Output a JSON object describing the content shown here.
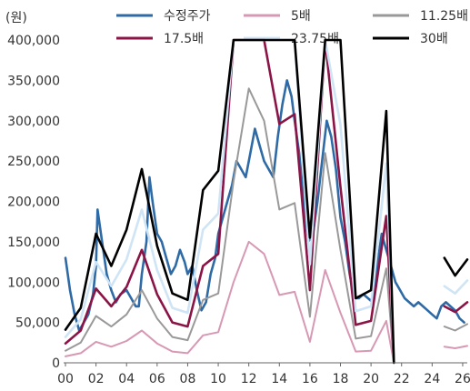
{
  "chart_data": {
    "type": "line",
    "unit_label": "(원)",
    "ylim": [
      0,
      400000
    ],
    "y_ticks": [
      "400,000",
      "350,000",
      "300,000",
      "250,000",
      "200,000",
      "150,000",
      "100,000",
      "50,000",
      "0"
    ],
    "y_tick_values": [
      400000,
      350000,
      300000,
      250000,
      200000,
      150000,
      100000,
      50000,
      0
    ],
    "x_ticks": [
      "00",
      "02",
      "04",
      "06",
      "08",
      "10",
      "12",
      "14",
      "16",
      "18",
      "20",
      "22",
      "24",
      "26"
    ],
    "x_tick_values": [
      2000,
      2002,
      2004,
      2006,
      2008,
      2010,
      2012,
      2014,
      2016,
      2018,
      2020,
      2022,
      2024,
      2026
    ],
    "xlim": [
      2000,
      2026.3
    ],
    "legend_position": "top",
    "series": [
      {
        "name": "수정주가",
        "color": "#2e6aa5",
        "width": 2.6,
        "points": [
          [
            2000.0,
            130000
          ],
          [
            2000.3,
            90000
          ],
          [
            2000.6,
            60000
          ],
          [
            2000.9,
            40000
          ],
          [
            2001.2,
            50000
          ],
          [
            2001.5,
            60000
          ],
          [
            2001.8,
            85000
          ],
          [
            2002.0,
            120000
          ],
          [
            2002.1,
            190000
          ],
          [
            2002.4,
            150000
          ],
          [
            2002.7,
            110000
          ],
          [
            2003.0,
            90000
          ],
          [
            2003.3,
            75000
          ],
          [
            2003.6,
            85000
          ],
          [
            2004.0,
            90000
          ],
          [
            2004.3,
            80000
          ],
          [
            2004.6,
            70000
          ],
          [
            2004.8,
            70000
          ],
          [
            2005.0,
            110000
          ],
          [
            2005.3,
            150000
          ],
          [
            2005.5,
            230000
          ],
          [
            2005.7,
            200000
          ],
          [
            2006.0,
            160000
          ],
          [
            2006.3,
            150000
          ],
          [
            2006.6,
            130000
          ],
          [
            2006.9,
            110000
          ],
          [
            2007.2,
            120000
          ],
          [
            2007.5,
            140000
          ],
          [
            2007.8,
            125000
          ],
          [
            2008.0,
            110000
          ],
          [
            2008.3,
            120000
          ],
          [
            2008.6,
            90000
          ],
          [
            2008.9,
            65000
          ],
          [
            2009.2,
            75000
          ],
          [
            2009.5,
            110000
          ],
          [
            2009.8,
            130000
          ],
          [
            2010.0,
            160000
          ],
          [
            2010.3,
            180000
          ],
          [
            2010.6,
            200000
          ],
          [
            2010.9,
            220000
          ],
          [
            2011.2,
            250000
          ],
          [
            2011.5,
            240000
          ],
          [
            2011.8,
            230000
          ],
          [
            2012.1,
            260000
          ],
          [
            2012.4,
            290000
          ],
          [
            2012.7,
            270000
          ],
          [
            2013.0,
            250000
          ],
          [
            2013.3,
            240000
          ],
          [
            2013.6,
            230000
          ],
          [
            2013.9,
            280000
          ],
          [
            2014.2,
            320000
          ],
          [
            2014.5,
            350000
          ],
          [
            2014.8,
            330000
          ],
          [
            2015.0,
            300000
          ],
          [
            2015.3,
            260000
          ],
          [
            2015.6,
            200000
          ],
          [
            2015.9,
            150000
          ],
          [
            2016.2,
            160000
          ],
          [
            2016.5,
            200000
          ],
          [
            2016.8,
            250000
          ],
          [
            2017.1,
            300000
          ],
          [
            2017.4,
            280000
          ],
          [
            2017.7,
            240000
          ],
          [
            2018.0,
            180000
          ],
          [
            2018.3,
            150000
          ],
          [
            2018.6,
            110000
          ],
          [
            2018.9,
            80000
          ],
          [
            2019.2,
            80000
          ],
          [
            2019.5,
            85000
          ],
          [
            2019.8,
            80000
          ],
          [
            2020.1,
            75000
          ],
          [
            2020.4,
            120000
          ],
          [
            2020.7,
            160000
          ],
          [
            2021.0,
            140000
          ],
          [
            2021.3,
            120000
          ],
          [
            2021.6,
            100000
          ],
          [
            2021.9,
            90000
          ],
          [
            2022.2,
            80000
          ],
          [
            2022.5,
            75000
          ],
          [
            2022.8,
            70000
          ],
          [
            2023.1,
            75000
          ],
          [
            2023.4,
            70000
          ],
          [
            2023.7,
            65000
          ],
          [
            2024.0,
            60000
          ],
          [
            2024.3,
            55000
          ],
          [
            2024.6,
            70000
          ],
          [
            2024.9,
            75000
          ],
          [
            2025.2,
            70000
          ],
          [
            2025.5,
            65000
          ],
          [
            2025.8,
            55000
          ],
          [
            2026.1,
            50000
          ]
        ]
      },
      {
        "name": "5배",
        "color": "#d798b4",
        "width": 2,
        "points": [
          [
            2000.0,
            8000
          ],
          [
            2001.0,
            12000
          ],
          [
            2002.0,
            26000
          ],
          [
            2003.0,
            20000
          ],
          [
            2004.0,
            27000
          ],
          [
            2005.0,
            40000
          ],
          [
            2006.0,
            24000
          ],
          [
            2007.0,
            14000
          ],
          [
            2008.0,
            12000
          ],
          [
            2009.0,
            34000
          ],
          [
            2010.0,
            38000
          ],
          [
            2011.0,
            100000
          ],
          [
            2012.0,
            150000
          ],
          [
            2013.0,
            135000
          ],
          [
            2014.0,
            84000
          ],
          [
            2015.0,
            88000
          ],
          [
            2016.0,
            26000
          ],
          [
            2017.0,
            115000
          ],
          [
            2018.0,
            62000
          ],
          [
            2019.0,
            14000
          ],
          [
            2020.0,
            15000
          ],
          [
            2021.0,
            52000
          ],
          [
            2021.5,
            0
          ],
          [
            null,
            null
          ],
          [
            2024.8,
            20000
          ],
          [
            2025.5,
            18000
          ],
          [
            2026.3,
            21000
          ]
        ]
      },
      {
        "name": "11.25배",
        "color": "#999999",
        "width": 2,
        "points": [
          [
            2000.0,
            15000
          ],
          [
            2001.0,
            25000
          ],
          [
            2002.0,
            58000
          ],
          [
            2003.0,
            45000
          ],
          [
            2004.0,
            60000
          ],
          [
            2005.0,
            90000
          ],
          [
            2006.0,
            55000
          ],
          [
            2007.0,
            32000
          ],
          [
            2008.0,
            28000
          ],
          [
            2009.0,
            78000
          ],
          [
            2010.0,
            86000
          ],
          [
            2011.0,
            225000
          ],
          [
            2012.0,
            340000
          ],
          [
            2013.0,
            300000
          ],
          [
            2014.0,
            190000
          ],
          [
            2015.0,
            198000
          ],
          [
            2016.0,
            57000
          ],
          [
            2017.0,
            260000
          ],
          [
            2018.0,
            140000
          ],
          [
            2019.0,
            30000
          ],
          [
            2020.0,
            33000
          ],
          [
            2021.0,
            117000
          ],
          [
            2021.5,
            0
          ],
          [
            null,
            null
          ],
          [
            2024.8,
            45000
          ],
          [
            2025.5,
            40000
          ],
          [
            2026.3,
            48000
          ]
        ]
      },
      {
        "name": "17.5배",
        "color": "#8b1446",
        "width": 2.6,
        "points": [
          [
            2000.0,
            24000
          ],
          [
            2001.0,
            40000
          ],
          [
            2002.0,
            92000
          ],
          [
            2003.0,
            70000
          ],
          [
            2004.0,
            94000
          ],
          [
            2005.0,
            140000
          ],
          [
            2006.0,
            85000
          ],
          [
            2007.0,
            50000
          ],
          [
            2008.0,
            45000
          ],
          [
            2009.0,
            120000
          ],
          [
            2010.0,
            135000
          ],
          [
            2011.0,
            400000
          ],
          [
            2012.0,
            400000
          ],
          [
            2013.0,
            400000
          ],
          [
            2014.0,
            296000
          ],
          [
            2015.0,
            308000
          ],
          [
            2016.0,
            90000
          ],
          [
            2017.0,
            400000
          ],
          [
            2018.0,
            218000
          ],
          [
            2019.0,
            47000
          ],
          [
            2020.0,
            52000
          ],
          [
            2021.0,
            182000
          ],
          [
            2021.5,
            0
          ],
          [
            null,
            null
          ],
          [
            2024.8,
            70000
          ],
          [
            2025.5,
            63000
          ],
          [
            2026.3,
            75000
          ]
        ]
      },
      {
        "name": "23.75배",
        "color": "#cfe4f5",
        "width": 2.6,
        "points": [
          [
            2000.0,
            32000
          ],
          [
            2001.0,
            54000
          ],
          [
            2002.0,
            125000
          ],
          [
            2003.0,
            95000
          ],
          [
            2004.0,
            128000
          ],
          [
            2005.0,
            190000
          ],
          [
            2006.0,
            115000
          ],
          [
            2007.0,
            68000
          ],
          [
            2008.0,
            62000
          ],
          [
            2009.0,
            165000
          ],
          [
            2010.0,
            185000
          ],
          [
            2011.0,
            400000
          ],
          [
            2012.0,
            400000
          ],
          [
            2013.0,
            400000
          ],
          [
            2014.0,
            400000
          ],
          [
            2015.0,
            400000
          ],
          [
            2016.0,
            122000
          ],
          [
            2017.0,
            400000
          ],
          [
            2018.0,
            295000
          ],
          [
            2019.0,
            64000
          ],
          [
            2020.0,
            70000
          ],
          [
            2021.0,
            247000
          ],
          [
            2021.5,
            0
          ],
          [
            null,
            null
          ],
          [
            2024.8,
            95000
          ],
          [
            2025.5,
            86000
          ],
          [
            2026.3,
            102000
          ]
        ]
      },
      {
        "name": "30배",
        "color": "#000000",
        "width": 2.6,
        "points": [
          [
            2000.0,
            41000
          ],
          [
            2001.0,
            68000
          ],
          [
            2002.0,
            160000
          ],
          [
            2003.0,
            120000
          ],
          [
            2004.0,
            165000
          ],
          [
            2005.0,
            240000
          ],
          [
            2006.0,
            145000
          ],
          [
            2007.0,
            86000
          ],
          [
            2008.0,
            78000
          ],
          [
            2009.0,
            214000
          ],
          [
            2010.0,
            238000
          ],
          [
            2011.0,
            400000
          ],
          [
            2012.0,
            400000
          ],
          [
            2013.0,
            400000
          ],
          [
            2014.0,
            400000
          ],
          [
            2015.0,
            400000
          ],
          [
            2016.0,
            155000
          ],
          [
            2017.0,
            400000
          ],
          [
            2018.0,
            400000
          ],
          [
            2019.0,
            80000
          ],
          [
            2020.0,
            90000
          ],
          [
            2021.0,
            312000
          ],
          [
            2021.5,
            0
          ],
          [
            null,
            null
          ],
          [
            2024.8,
            130000
          ],
          [
            2025.5,
            108000
          ],
          [
            2026.3,
            128000
          ]
        ]
      }
    ]
  }
}
